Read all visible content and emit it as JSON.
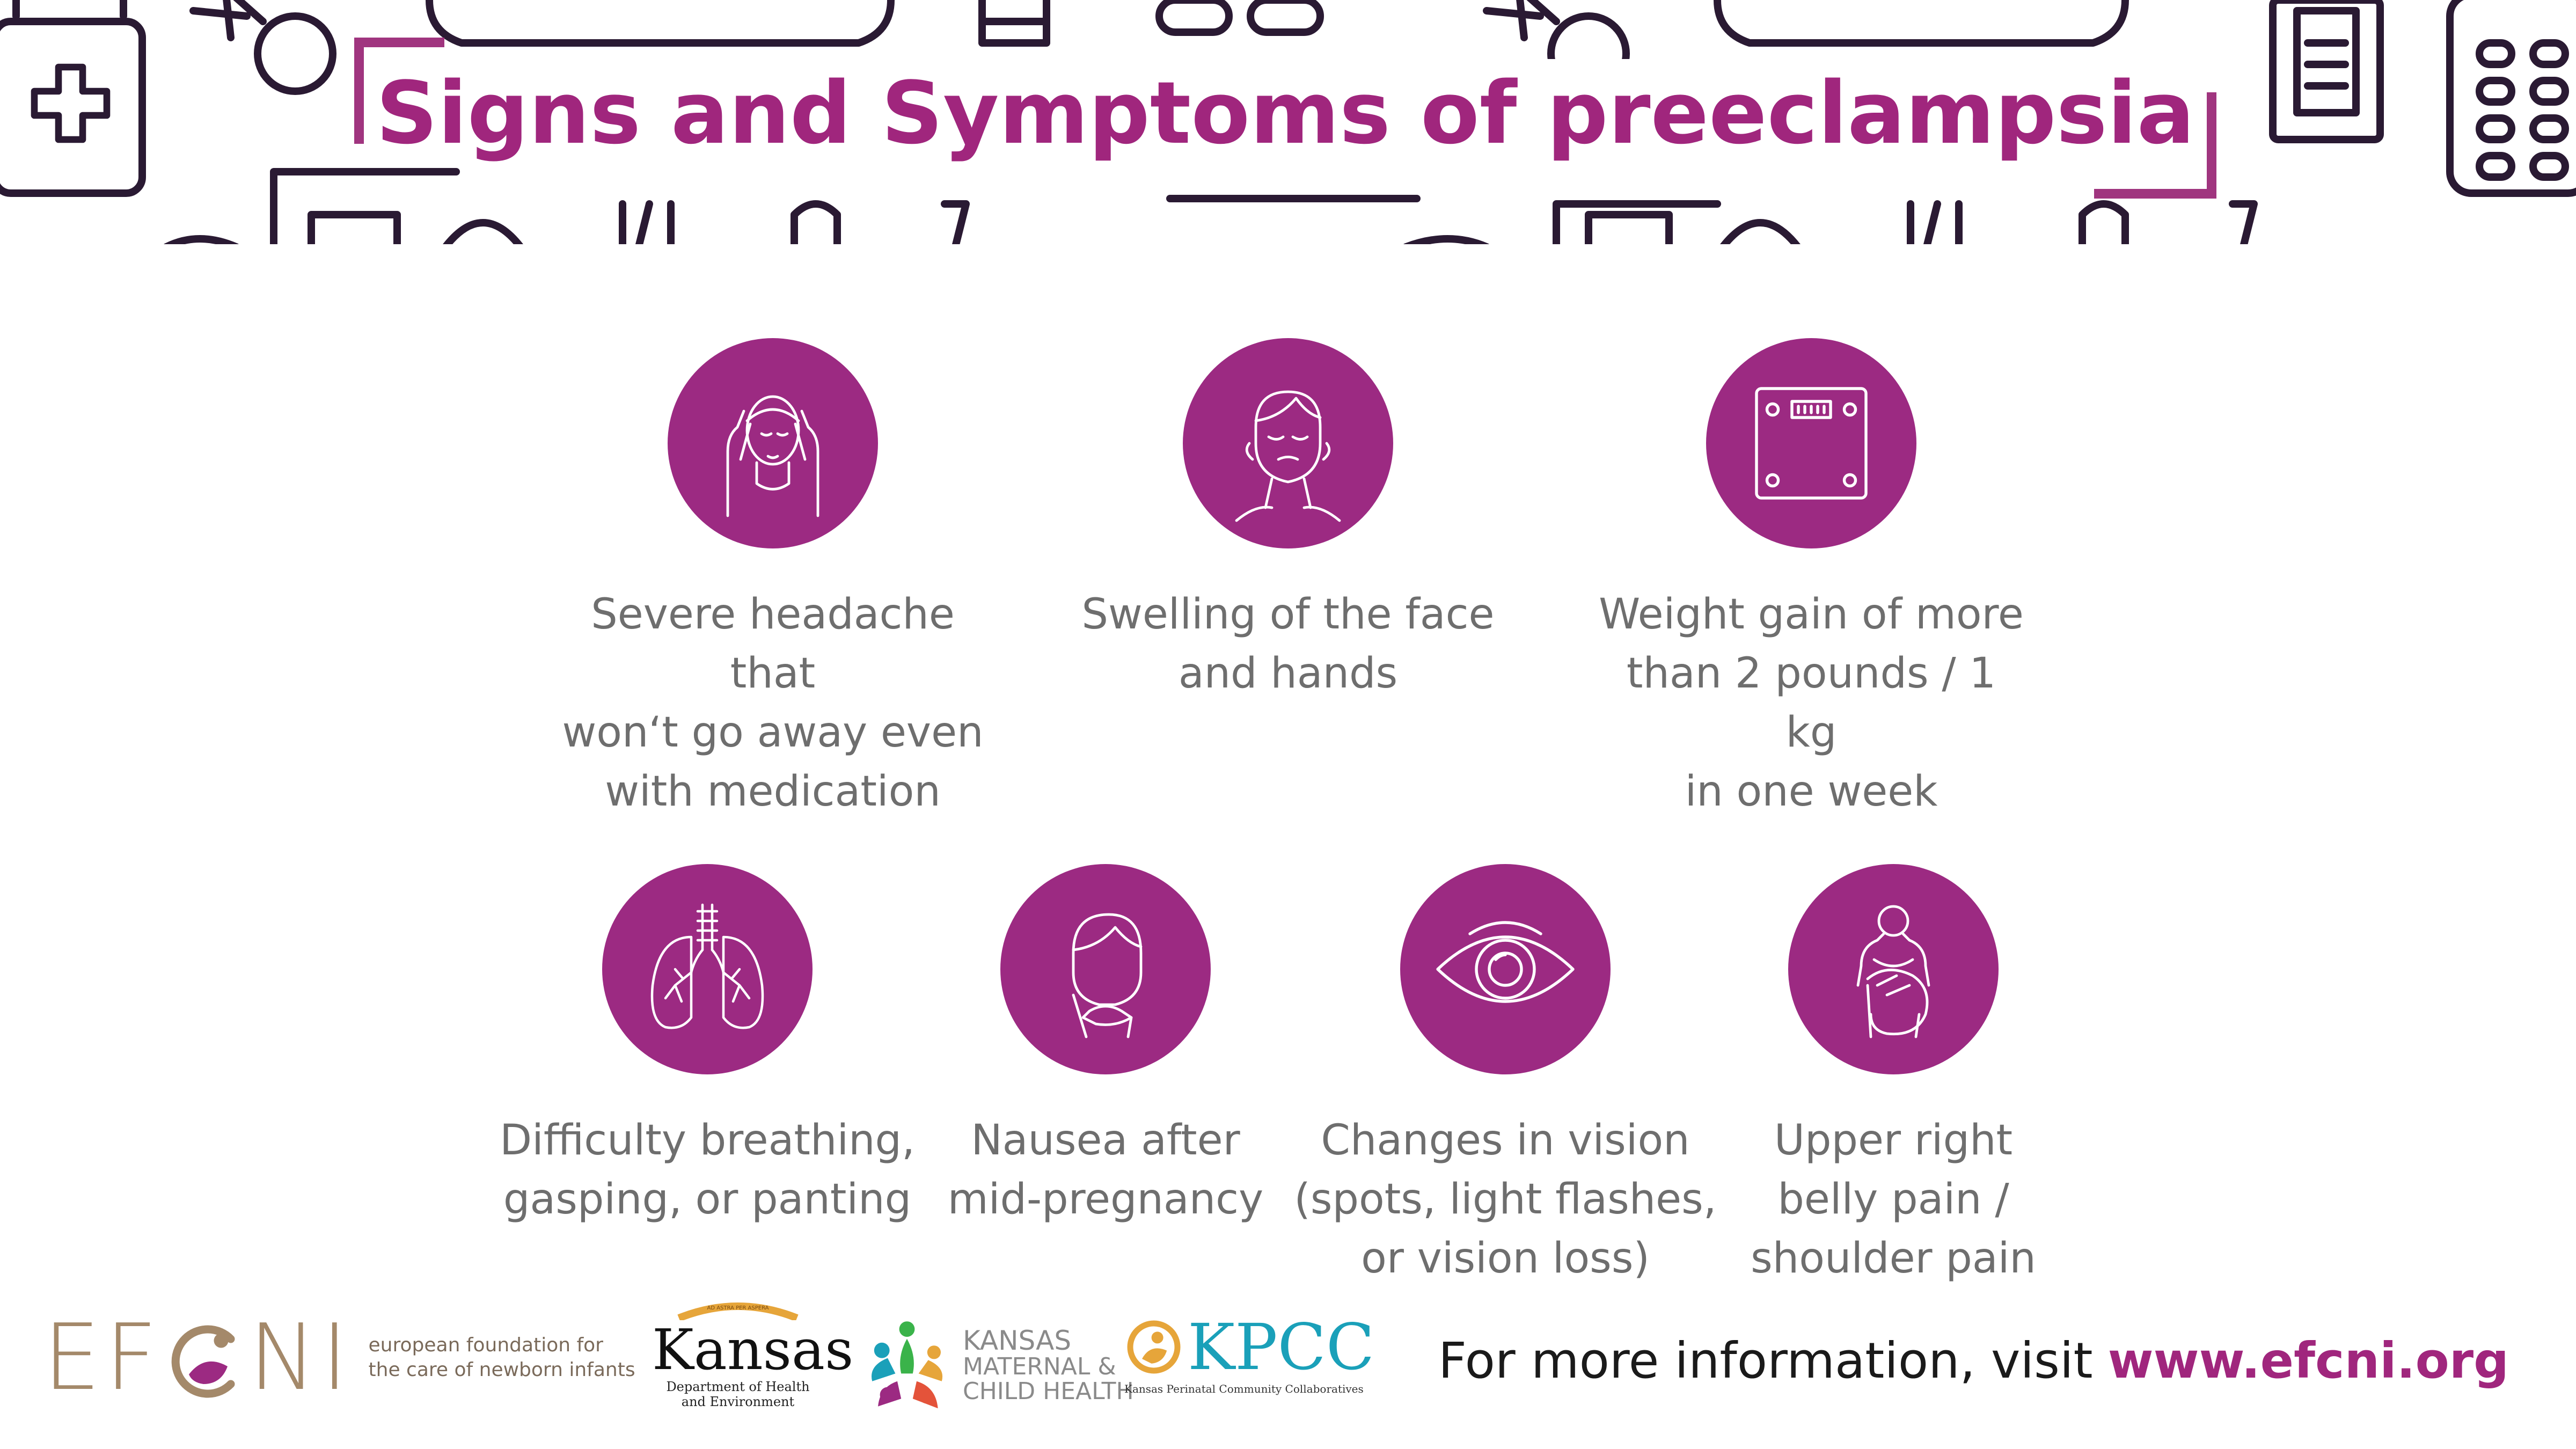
{
  "title": "Signs and Symptoms of preeclampsia",
  "colors": {
    "accent": "#a0267d",
    "icon_circle": "#9c2a82",
    "body_text": "#6e6e6e",
    "outline": "#2a1a33",
    "efcni_gold": "#a4896a",
    "kpcc_teal": "#1aa0b9"
  },
  "symptoms": [
    {
      "icon": "headache-icon",
      "label": "Severe headache that\nwon‘t go away even\nwith medication"
    },
    {
      "icon": "face-swelling-icon",
      "label": "Swelling of the face\nand hands"
    },
    {
      "icon": "scale-icon",
      "label": "Weight gain of more\nthan 2 pounds / 1 kg\nin one week"
    },
    {
      "icon": "lungs-icon",
      "label": "Difficulty breathing,\ngasping, or panting"
    },
    {
      "icon": "nausea-icon",
      "label": "Nausea after\nmid-pregnancy"
    },
    {
      "icon": "eye-icon",
      "label": "Changes in vision\n(spots, light flashes,\nor vision loss)"
    },
    {
      "icon": "pregnant-belly-icon",
      "label": "Upper right\nbelly pain /\nshoulder pain"
    }
  ],
  "footer": {
    "efcni": {
      "name": "EFCNI",
      "tagline": "european foundation for\nthe care of newborn infants"
    },
    "kansas": {
      "name": "Kansas",
      "arc_text": "AD ASTRA PER ASPERA",
      "subtitle": "Department of Health\nand Environment"
    },
    "kmch": {
      "line1": "KANSAS",
      "line2": "MATERNAL &\nCHILD HEALTH"
    },
    "kpcc": {
      "name": "KPCC",
      "subtitle": "Kansas Perinatal Community Collaboratives"
    },
    "more_info_text": "For more information, visit",
    "url": "www.efcni.org"
  }
}
